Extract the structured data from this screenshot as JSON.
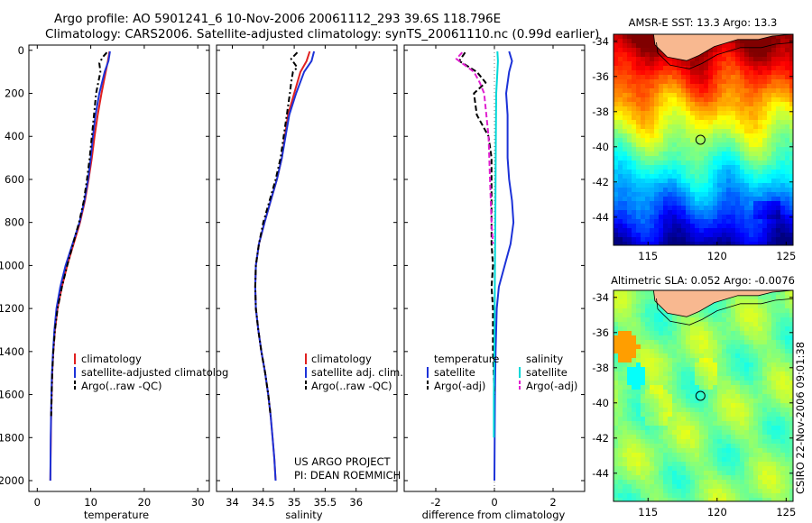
{
  "header": {
    "line1": "Argo profile: AO 5901241_6 10-Nov-2006 20061112_293 39.6S 118.796E",
    "line2": "Climatology: CARS2006. Satellite-adjusted climatology: synTS_20061110.nc (0.99d earlier)"
  },
  "chart_data": [
    {
      "type": "line",
      "name": "temperature-profile",
      "xlabel": "temperature",
      "ylabel": "",
      "xlim": [
        -1,
        32
      ],
      "ylim": [
        2070,
        0
      ],
      "xticks": [
        0,
        10,
        20,
        30
      ],
      "yticks": [
        0,
        200,
        400,
        600,
        800,
        1000,
        1200,
        1400,
        1600,
        1800,
        2000
      ],
      "legend": [
        "climatology",
        "satellite-adjusted climatolog",
        "Argo(..raw -QC)"
      ],
      "series": [
        {
          "name": "climatology",
          "color": "#e02020",
          "dash": "",
          "depth": [
            5,
            50,
            100,
            200,
            300,
            400,
            500,
            600,
            700,
            800,
            900,
            1000,
            1100,
            1200,
            1300,
            1400,
            1500,
            1600,
            1700,
            1800,
            1900,
            2000
          ],
          "values": [
            13.5,
            13.2,
            12.8,
            12.0,
            11.3,
            10.7,
            10.2,
            9.6,
            8.9,
            8.0,
            6.8,
            5.6,
            4.6,
            3.8,
            3.3,
            3.0,
            2.8,
            2.7,
            2.6,
            2.55,
            2.5,
            2.45
          ]
        },
        {
          "name": "satellite-adjusted climatology",
          "color": "#1c32d8",
          "dash": "",
          "depth": [
            5,
            50,
            100,
            200,
            300,
            400,
            500,
            600,
            700,
            800,
            900,
            1000,
            1100,
            1200,
            1300,
            1400,
            1500,
            1600,
            1700,
            1800,
            1900,
            2000
          ],
          "values": [
            13.6,
            13.3,
            12.6,
            11.6,
            10.9,
            10.4,
            10.0,
            9.5,
            8.8,
            7.9,
            6.6,
            5.3,
            4.3,
            3.6,
            3.2,
            2.95,
            2.75,
            2.65,
            2.58,
            2.52,
            2.48,
            2.45
          ]
        },
        {
          "name": "Argo(..raw -QC)",
          "color": "#000000",
          "dash": "6,3,2,3",
          "depth": [
            10,
            30,
            60,
            100,
            150,
            200,
            300,
            400,
            500,
            600,
            700,
            800,
            900,
            1000,
            1100,
            1200,
            1300,
            1400,
            1500,
            1600,
            1700
          ],
          "values": [
            13.0,
            12.3,
            11.6,
            11.8,
            11.4,
            11.0,
            10.6,
            10.2,
            9.8,
            9.3,
            8.7,
            7.8,
            6.7,
            5.6,
            4.6,
            3.8,
            3.3,
            3.0,
            2.8,
            2.7,
            2.6
          ]
        }
      ]
    },
    {
      "type": "line",
      "name": "salinity-profile",
      "xlabel": "salinity",
      "ylabel": "",
      "xlim": [
        33.9,
        36.05
      ],
      "ylim": [
        2070,
        0
      ],
      "xticks": [
        34,
        34.5,
        35,
        35.5,
        36
      ],
      "legend": [
        "climatology",
        "satellite adj. clim.",
        "Argo(..raw -QC)"
      ],
      "annotation": [
        "US ARGO PROJECT",
        "PI: DEAN ROEMMICH"
      ],
      "series": [
        {
          "name": "climatology",
          "color": "#e02020",
          "dash": "",
          "depth": [
            5,
            50,
            100,
            200,
            300,
            400,
            500,
            600,
            700,
            800,
            900,
            1000,
            1100,
            1200,
            1300,
            1400,
            1500,
            1600,
            1700,
            1800,
            1900,
            2000
          ],
          "values": [
            35.25,
            35.2,
            35.1,
            35.0,
            34.9,
            34.85,
            34.8,
            34.72,
            34.62,
            34.52,
            34.43,
            34.38,
            34.37,
            34.38,
            34.42,
            34.47,
            34.53,
            34.58,
            34.62,
            34.65,
            34.68,
            34.7
          ]
        },
        {
          "name": "satellite adj. clim.",
          "color": "#1c32d8",
          "dash": "",
          "depth": [
            5,
            50,
            100,
            200,
            300,
            400,
            500,
            600,
            700,
            800,
            900,
            1000,
            1100,
            1200,
            1300,
            1400,
            1500,
            1600,
            1700,
            1800,
            1900,
            2000
          ],
          "values": [
            35.32,
            35.28,
            35.16,
            35.03,
            34.92,
            34.86,
            34.8,
            34.72,
            34.62,
            34.52,
            34.43,
            34.38,
            34.37,
            34.38,
            34.42,
            34.47,
            34.53,
            34.58,
            34.62,
            34.65,
            34.68,
            34.7
          ]
        },
        {
          "name": "Argo(..raw -QC)",
          "color": "#000000",
          "dash": "6,3,2,3",
          "depth": [
            10,
            40,
            80,
            100,
            150,
            200,
            300,
            400,
            500,
            600,
            700,
            800,
            900,
            1000,
            1100,
            1200,
            1300,
            1400,
            1500,
            1600,
            1700
          ],
          "values": [
            35.05,
            34.95,
            35.05,
            34.98,
            34.95,
            34.93,
            34.88,
            34.83,
            34.78,
            34.7,
            34.6,
            34.5,
            34.43,
            34.38,
            34.37,
            34.38,
            34.42,
            34.47,
            34.53,
            34.58,
            34.62
          ]
        }
      ]
    },
    {
      "type": "line",
      "name": "difference-profile",
      "xlabel": "difference from climatology",
      "ylabel": "",
      "xlim": [
        -3,
        3.05
      ],
      "ylim": [
        2070,
        0
      ],
      "xticks": [
        -2,
        0,
        2
      ],
      "legend_titles": [
        "temperature",
        "salinity"
      ],
      "legend": [
        "satellite",
        "Argo(-adj)",
        "satellite",
        "Argo(-adj)"
      ],
      "series": [
        {
          "name": "temperature satellite",
          "color": "#1c32d8",
          "dash": "",
          "depth": [
            5,
            50,
            100,
            200,
            300,
            400,
            500,
            600,
            700,
            800,
            900,
            1000,
            1100,
            1200,
            1400,
            1600,
            1800,
            2000
          ],
          "values": [
            0.5,
            0.6,
            0.5,
            0.4,
            0.45,
            0.45,
            0.45,
            0.5,
            0.6,
            0.65,
            0.55,
            0.35,
            0.15,
            0.08,
            0.04,
            0.02,
            0.01,
            0.0
          ]
        },
        {
          "name": "temperature Argo(-adj)",
          "color": "#000000",
          "dash": "6,3",
          "depth": [
            10,
            50,
            100,
            150,
            200,
            300,
            400,
            500,
            600,
            700,
            800,
            900,
            1000,
            1100,
            1200,
            1400,
            1600
          ],
          "values": [
            -1.0,
            -1.2,
            -0.6,
            -0.3,
            -0.7,
            -0.6,
            -0.2,
            -0.1,
            -0.1,
            -0.1,
            -0.1,
            -0.1,
            -0.05,
            -0.1,
            -0.05,
            -0.05,
            0.0
          ]
        },
        {
          "name": "salinity satellite",
          "color": "#00d8d8",
          "dash": "",
          "depth": [
            5,
            50,
            100,
            200,
            400,
            600,
            800,
            1000,
            1200,
            1400,
            1600,
            1800
          ],
          "values": [
            0.1,
            0.12,
            0.1,
            0.06,
            0.05,
            0.04,
            0.03,
            0.02,
            0.01,
            0.0,
            -0.02,
            -0.02
          ]
        },
        {
          "name": "salinity Argo(-adj)",
          "color": "#e020d0",
          "dash": "6,3",
          "depth": [
            10,
            40,
            80,
            100,
            150,
            200,
            400,
            600,
            800,
            900
          ],
          "values": [
            -1.1,
            -1.3,
            -0.9,
            -0.7,
            -0.5,
            -0.35,
            -0.2,
            -0.15,
            -0.1,
            -0.05
          ]
        }
      ]
    },
    {
      "type": "heatmap",
      "name": "sst-map",
      "title": "AMSR-E SST: 13.3 Argo: 13.3",
      "xlim": [
        112.5,
        125.5
      ],
      "ylim": [
        -45.6,
        -33.6
      ],
      "xticks": [
        115,
        120,
        125
      ],
      "yticks": [
        -34,
        -36,
        -38,
        -40,
        -42,
        -44
      ],
      "marker": {
        "lon": 118.796,
        "lat": -39.6
      }
    },
    {
      "type": "heatmap",
      "name": "sla-map",
      "title": "Altimetric SLA: 0.052 Argo: -0.0076",
      "xlim": [
        112.5,
        125.5
      ],
      "ylim": [
        -45.6,
        -33.6
      ],
      "xticks": [
        115,
        120,
        125
      ],
      "yticks": [
        -34,
        -36,
        -38,
        -40,
        -42,
        -44
      ],
      "marker": {
        "lon": 118.796,
        "lat": -39.6
      }
    }
  ],
  "credit": "CSIRO 22-Nov-2006 09:01:38",
  "colors": {
    "land": "#f8b890",
    "red": "#e02020",
    "blue": "#1c32d8",
    "cyan": "#00d8d8",
    "magenta": "#e020d0"
  }
}
